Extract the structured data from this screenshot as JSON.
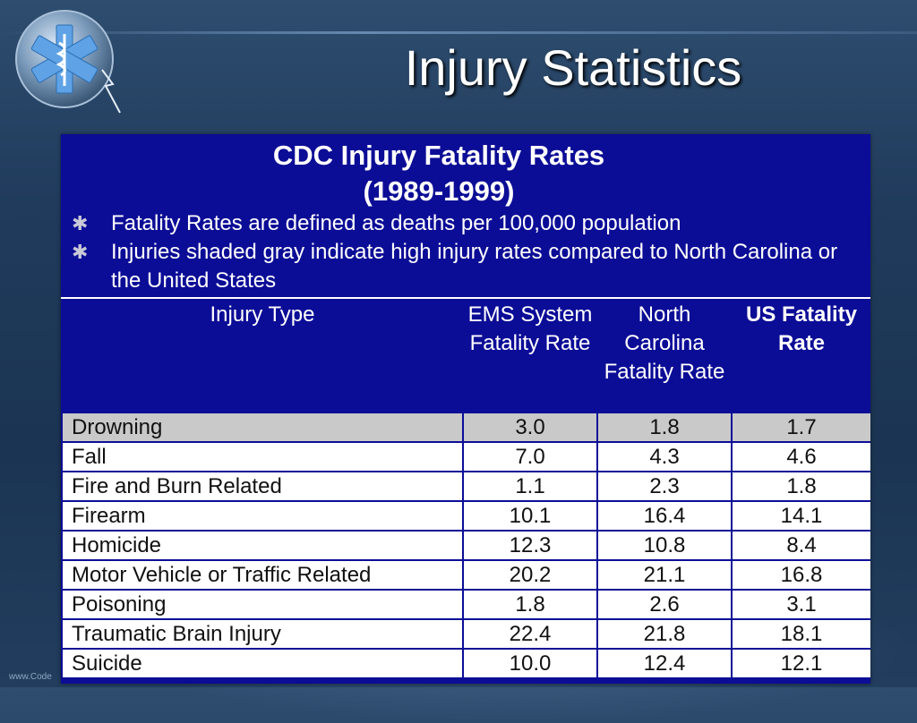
{
  "slide": {
    "title": "Injury Statistics",
    "footer_text": "www.Code"
  },
  "colors": {
    "panel_bg": "#0c0d96",
    "shaded_row": "#c9c9c9",
    "logo_cross": "#5fa3e6"
  },
  "logo": {
    "icon": "star-of-life-icon"
  },
  "panel": {
    "title_line1": "CDC Injury Fatality Rates",
    "title_line2": "(1989-1999)",
    "bullets": [
      "Fatality Rates are defined as deaths per 100,000 population",
      "Injuries shaded gray indicate high injury rates compared to North Carolina or the United States"
    ],
    "bullet_icon": "asterisk-icon"
  },
  "table": {
    "headers": [
      "Injury Type",
      "EMS System Fatality Rate",
      "North Carolina Fatality Rate",
      "US Fatality Rate"
    ],
    "rows": [
      {
        "type": "Drowning",
        "ems": "3.0",
        "nc": "1.8",
        "us": "1.7",
        "shaded": true
      },
      {
        "type": "Fall",
        "ems": "7.0",
        "nc": "4.3",
        "us": "4.6",
        "shaded": false
      },
      {
        "type": "Fire and Burn Related",
        "ems": "1.1",
        "nc": "2.3",
        "us": "1.8",
        "shaded": false
      },
      {
        "type": "Firearm",
        "ems": "10.1",
        "nc": "16.4",
        "us": "14.1",
        "shaded": false
      },
      {
        "type": "Homicide",
        "ems": "12.3",
        "nc": "10.8",
        "us": "8.4",
        "shaded": false
      },
      {
        "type": "Motor Vehicle or Traffic Related",
        "ems": "20.2",
        "nc": "21.1",
        "us": "16.8",
        "shaded": false
      },
      {
        "type": "Poisoning",
        "ems": "1.8",
        "nc": "2.6",
        "us": "3.1",
        "shaded": false
      },
      {
        "type": "Traumatic Brain Injury",
        "ems": "22.4",
        "nc": "21.8",
        "us": "18.1",
        "shaded": false
      },
      {
        "type": "Suicide",
        "ems": "10.0",
        "nc": "12.4",
        "us": "12.1",
        "shaded": false
      }
    ]
  }
}
